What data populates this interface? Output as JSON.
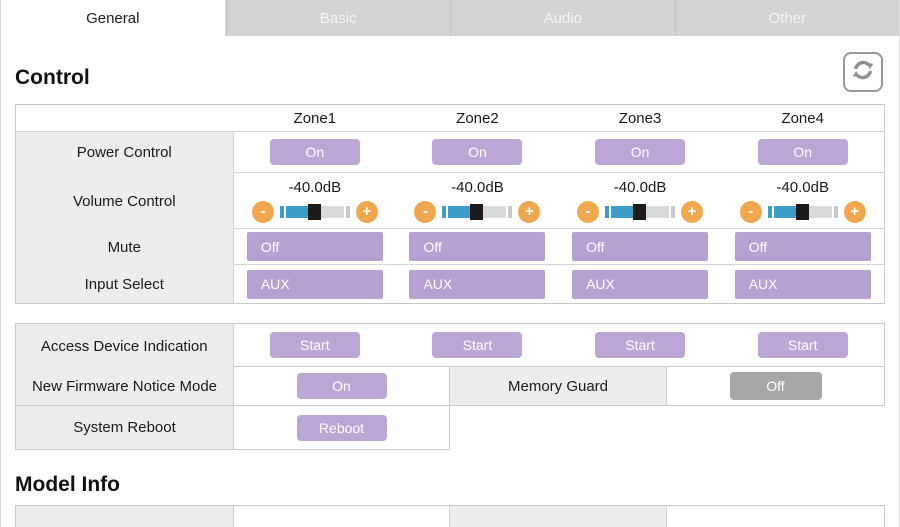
{
  "tabs": {
    "items": [
      {
        "label": "General",
        "active": true
      },
      {
        "label": "Basic",
        "active": false
      },
      {
        "label": "Audio",
        "active": false
      },
      {
        "label": "Other",
        "active": false
      }
    ]
  },
  "control": {
    "title": "Control",
    "zones": [
      "Zone1",
      "Zone2",
      "Zone3",
      "Zone4"
    ],
    "power": {
      "label": "Power Control",
      "values": [
        "On",
        "On",
        "On",
        "On"
      ]
    },
    "volume": {
      "label": "Volume Control",
      "values": [
        "-40.0dB",
        "-40.0dB",
        "-40.0dB",
        "-40.0dB"
      ],
      "minus_label": "-",
      "plus_label": "+",
      "fill_percent": 38
    },
    "mute": {
      "label": "Mute",
      "values": [
        "Off",
        "Off",
        "Off",
        "Off"
      ]
    },
    "input": {
      "label": "Input Select",
      "values": [
        "AUX",
        "AUX",
        "AUX",
        "AUX"
      ]
    }
  },
  "misc": {
    "access": {
      "label": "Access Device Indication",
      "values": [
        "Start",
        "Start",
        "Start",
        "Start"
      ]
    },
    "firmware": {
      "label": "New Firmware Notice Mode",
      "value": "On"
    },
    "memory_guard": {
      "label": "Memory Guard",
      "value": "Off"
    },
    "reboot": {
      "label": "System Reboot",
      "value": "Reboot"
    }
  },
  "model_info": {
    "title": "Model Info"
  },
  "colors": {
    "accent_purple": "#bca6d6",
    "accent_orange": "#f1a750",
    "slider_blue": "#3d9dc8",
    "disabled_gray": "#a7a7a7"
  }
}
